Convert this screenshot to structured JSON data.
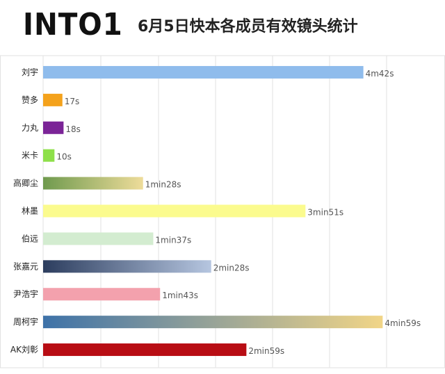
{
  "header": {
    "logo_text": "INTO1",
    "title": "6月5日快本各成员有效镜头统计"
  },
  "chart_data": {
    "type": "bar",
    "orientation": "horizontal",
    "title": "6月5日快本各成员有效镜头统计",
    "xlabel": "",
    "ylabel": "",
    "unit": "seconds",
    "xlim": [
      0,
      300
    ],
    "grid": true,
    "categories": [
      "刘宇",
      "赞多",
      "力丸",
      "米卡",
      "高卿尘",
      "林墨",
      "伯远",
      "张嘉元",
      "尹浩宇",
      "周柯宇",
      "AK刘彰"
    ],
    "values": [
      282,
      17,
      18,
      10,
      88,
      231,
      97,
      148,
      103,
      299,
      179
    ],
    "value_labels": [
      "4m42s",
      "17s",
      "18s",
      "10s",
      "1min28s",
      "3min51s",
      "1min37s",
      "2min28s",
      "1min43s",
      "4min59s",
      "2min59s"
    ],
    "colors": [
      "#8fbcec",
      "#f4a21c",
      "#7b2497",
      "#8ee04a",
      "#6f9a4e",
      "#fbfb8e",
      "#d3ecd0",
      "#2c3d5e",
      "#f3a1ad",
      "#3e72a8",
      "#b80d14"
    ],
    "gradient_end_colors": [
      null,
      null,
      null,
      null,
      "#eedc9a",
      null,
      null,
      "#b6c6e0",
      null,
      "#f1d587",
      null
    ]
  }
}
